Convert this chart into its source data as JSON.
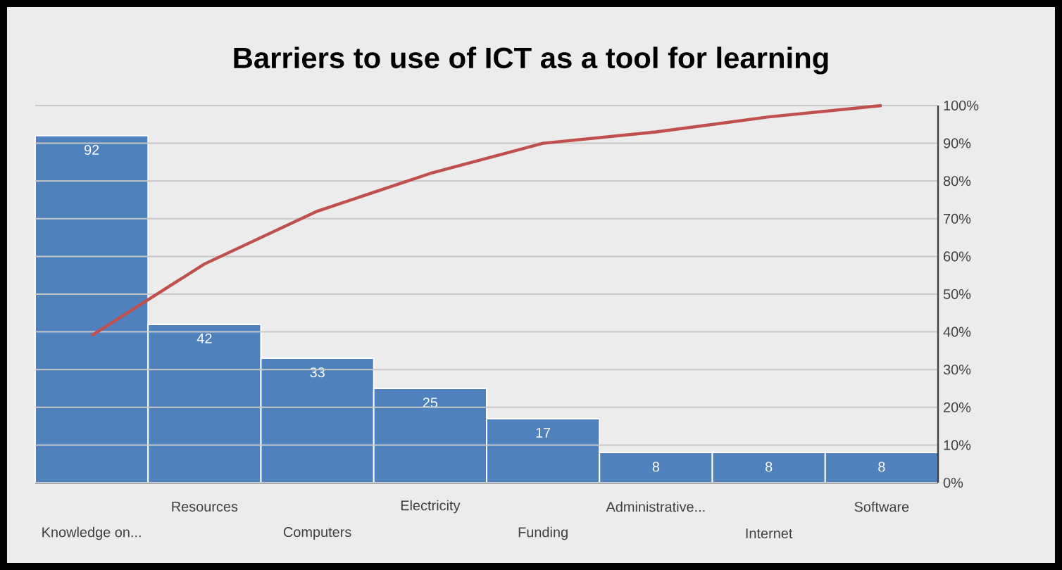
{
  "chart_data": {
    "type": "bar",
    "title": "Barriers to use of ICT as a tool for learning",
    "categories": [
      "Knowledge on...",
      "Resources",
      "Computers",
      "Electricity",
      "Funding",
      "Administrative...",
      "Internet",
      "Software"
    ],
    "series": [
      {
        "color": "#4f81bd",
        "values": [
          92,
          42,
          33,
          25,
          17,
          8,
          8,
          8
        ],
        "value_labels": [
          "92",
          "42",
          "33",
          "25",
          "17",
          "8",
          "8",
          "8"
        ]
      },
      {
        "type": "line",
        "axis": "y2",
        "color": "#c0504d",
        "values": [
          39,
          58,
          72,
          82,
          90,
          93,
          97,
          100
        ]
      }
    ],
    "ylim": [
      0,
      100
    ],
    "y2lim": [
      0,
      100
    ],
    "y2ticks": [
      {
        "value": 0,
        "label": "0%"
      },
      {
        "value": 10,
        "label": "10%"
      },
      {
        "value": 20,
        "label": "20%"
      },
      {
        "value": 30,
        "label": "30%"
      },
      {
        "value": 40,
        "label": "40%"
      },
      {
        "value": 50,
        "label": "50%"
      },
      {
        "value": 60,
        "label": "60%"
      },
      {
        "value": 70,
        "label": "70%"
      },
      {
        "value": 80,
        "label": "80%"
      },
      {
        "value": 90,
        "label": "90%"
      },
      {
        "value": 100,
        "label": "100%"
      }
    ],
    "grid": true,
    "marker": "none",
    "line_style": "solid"
  }
}
